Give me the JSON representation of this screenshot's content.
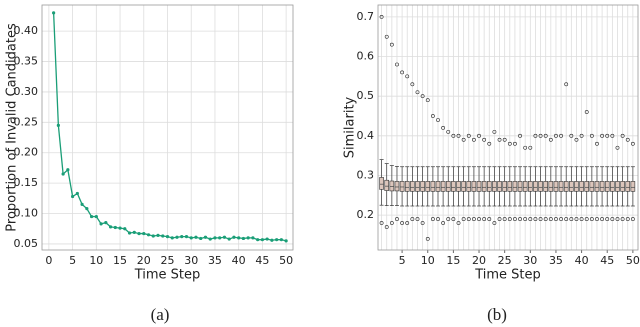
{
  "chart_data": [
    {
      "type": "line",
      "caption": "(a)",
      "xlabel": "Time Step",
      "ylabel": "Proportion of Invalid Candidates",
      "color": "#1a9e77",
      "grid": true,
      "x": [
        1,
        2,
        3,
        4,
        5,
        6,
        7,
        8,
        9,
        10,
        11,
        12,
        13,
        14,
        15,
        16,
        17,
        18,
        19,
        20,
        21,
        22,
        23,
        24,
        25,
        26,
        27,
        28,
        29,
        30,
        31,
        32,
        33,
        34,
        35,
        36,
        37,
        38,
        39,
        40,
        41,
        42,
        43,
        44,
        45,
        46,
        47,
        48,
        49,
        50
      ],
      "values": [
        0.43,
        0.245,
        0.165,
        0.172,
        0.128,
        0.133,
        0.115,
        0.108,
        0.095,
        0.095,
        0.083,
        0.085,
        0.078,
        0.077,
        0.076,
        0.075,
        0.068,
        0.069,
        0.067,
        0.067,
        0.065,
        0.063,
        0.064,
        0.063,
        0.062,
        0.06,
        0.061,
        0.062,
        0.062,
        0.06,
        0.061,
        0.059,
        0.061,
        0.058,
        0.06,
        0.06,
        0.061,
        0.058,
        0.061,
        0.06,
        0.059,
        0.06,
        0.06,
        0.057,
        0.057,
        0.058,
        0.056,
        0.057,
        0.057,
        0.055
      ],
      "xlim": [
        -1.45,
        51.45
      ],
      "xticks": [
        0,
        5,
        10,
        15,
        20,
        25,
        30,
        35,
        40,
        45,
        50
      ],
      "ylim": [
        0.04,
        0.443
      ],
      "yticks": [
        0.05,
        {
          "value": 0.1,
          "label": "0.10"
        },
        0.15,
        {
          "value": 0.2,
          "label": "0.20"
        },
        0.25,
        {
          "value": 0.3,
          "label": "0.30"
        },
        0.35,
        {
          "value": 0.4,
          "label": "0.40"
        }
      ]
    },
    {
      "type": "box",
      "caption": "(b)",
      "xlabel": "Time Step",
      "ylabel": "Similarity",
      "color": "#dcc6bc",
      "grid": true,
      "x": [
        1,
        2,
        3,
        4,
        5,
        6,
        7,
        8,
        9,
        10,
        11,
        12,
        13,
        14,
        15,
        16,
        17,
        18,
        19,
        20,
        21,
        22,
        23,
        24,
        25,
        26,
        27,
        28,
        29,
        30,
        31,
        32,
        33,
        34,
        35,
        36,
        37,
        38,
        39,
        40,
        41,
        42,
        43,
        44,
        45,
        46,
        47,
        48,
        49,
        50
      ],
      "whislo": [
        0.225,
        0.224,
        0.224,
        0.224,
        0.223,
        0.223,
        0.223,
        0.223,
        0.223,
        0.223,
        0.223,
        0.223,
        0.223,
        0.223,
        0.223,
        0.223,
        0.223,
        0.223,
        0.223,
        0.223,
        0.223,
        0.223,
        0.223,
        0.223,
        0.223,
        0.223,
        0.223,
        0.223,
        0.223,
        0.223,
        0.223,
        0.223,
        0.223,
        0.223,
        0.223,
        0.223,
        0.223,
        0.223,
        0.223,
        0.223,
        0.223,
        0.223,
        0.223,
        0.223,
        0.223,
        0.223,
        0.223,
        0.223,
        0.223,
        0.223
      ],
      "q1": [
        0.265,
        0.262,
        0.261,
        0.261,
        0.26,
        0.26,
        0.26,
        0.26,
        0.26,
        0.26,
        0.26,
        0.26,
        0.26,
        0.26,
        0.26,
        0.26,
        0.26,
        0.26,
        0.26,
        0.26,
        0.26,
        0.26,
        0.26,
        0.26,
        0.26,
        0.26,
        0.26,
        0.26,
        0.26,
        0.26,
        0.26,
        0.26,
        0.26,
        0.26,
        0.26,
        0.26,
        0.26,
        0.26,
        0.26,
        0.26,
        0.26,
        0.26,
        0.26,
        0.26,
        0.26,
        0.26,
        0.26,
        0.26,
        0.26,
        0.26
      ],
      "med": [
        0.278,
        0.273,
        0.272,
        0.271,
        0.271,
        0.27,
        0.27,
        0.27,
        0.27,
        0.27,
        0.27,
        0.27,
        0.27,
        0.27,
        0.27,
        0.27,
        0.27,
        0.27,
        0.27,
        0.27,
        0.27,
        0.27,
        0.27,
        0.27,
        0.27,
        0.27,
        0.27,
        0.27,
        0.27,
        0.27,
        0.27,
        0.27,
        0.27,
        0.27,
        0.27,
        0.27,
        0.27,
        0.27,
        0.27,
        0.27,
        0.27,
        0.27,
        0.27,
        0.27,
        0.27,
        0.27,
        0.27,
        0.27,
        0.27,
        0.27
      ],
      "q3": [
        0.295,
        0.288,
        0.286,
        0.285,
        0.285,
        0.285,
        0.285,
        0.285,
        0.285,
        0.285,
        0.285,
        0.285,
        0.285,
        0.285,
        0.285,
        0.285,
        0.285,
        0.285,
        0.285,
        0.285,
        0.285,
        0.285,
        0.285,
        0.285,
        0.285,
        0.285,
        0.285,
        0.285,
        0.285,
        0.285,
        0.285,
        0.285,
        0.285,
        0.285,
        0.285,
        0.285,
        0.285,
        0.285,
        0.285,
        0.285,
        0.285,
        0.285,
        0.285,
        0.285,
        0.285,
        0.285,
        0.285,
        0.285,
        0.285,
        0.285
      ],
      "whishi": [
        0.34,
        0.33,
        0.325,
        0.323,
        0.322,
        0.322,
        0.322,
        0.322,
        0.322,
        0.322,
        0.322,
        0.322,
        0.322,
        0.322,
        0.322,
        0.322,
        0.322,
        0.322,
        0.322,
        0.322,
        0.322,
        0.322,
        0.322,
        0.322,
        0.322,
        0.322,
        0.322,
        0.322,
        0.322,
        0.322,
        0.322,
        0.322,
        0.322,
        0.322,
        0.322,
        0.322,
        0.322,
        0.322,
        0.322,
        0.322,
        0.322,
        0.322,
        0.322,
        0.322,
        0.322,
        0.322,
        0.322,
        0.322,
        0.322,
        0.322
      ],
      "outlier_max": [
        0.7,
        0.65,
        0.63,
        0.58,
        0.56,
        0.55,
        0.53,
        0.51,
        0.5,
        0.49,
        0.45,
        0.44,
        0.42,
        0.41,
        0.4,
        0.4,
        0.39,
        0.4,
        0.39,
        0.4,
        0.39,
        0.38,
        0.41,
        0.39,
        0.39,
        0.38,
        0.38,
        0.4,
        0.37,
        0.37,
        0.4,
        0.4,
        0.4,
        0.39,
        0.4,
        0.4,
        0.53,
        0.4,
        0.39,
        0.4,
        0.46,
        0.4,
        0.38,
        0.4,
        0.4,
        0.4,
        0.37,
        0.4,
        0.39,
        0.38
      ],
      "outlier_min": [
        0.18,
        0.17,
        0.18,
        0.19,
        0.18,
        0.18,
        0.19,
        0.19,
        0.18,
        0.14,
        0.19,
        0.19,
        0.18,
        0.19,
        0.19,
        0.18,
        0.19,
        0.19,
        0.19,
        0.19,
        0.19,
        0.19,
        0.18,
        0.19,
        0.19,
        0.19,
        0.19,
        0.19,
        0.19,
        0.19,
        0.19,
        0.19,
        0.19,
        0.19,
        0.19,
        0.19,
        0.19,
        0.19,
        0.19,
        0.19,
        0.19,
        0.19,
        0.19,
        0.19,
        0.19,
        0.19,
        0.19,
        0.19,
        0.19,
        0.19
      ],
      "xlim": [
        0.3,
        51
      ],
      "xticks": [
        5,
        10,
        15,
        20,
        25,
        30,
        35,
        40,
        45,
        50
      ],
      "ylim": [
        0.112,
        0.73
      ],
      "yticks": [
        0.2,
        0.3,
        0.4,
        0.5,
        0.6,
        0.7
      ]
    }
  ]
}
